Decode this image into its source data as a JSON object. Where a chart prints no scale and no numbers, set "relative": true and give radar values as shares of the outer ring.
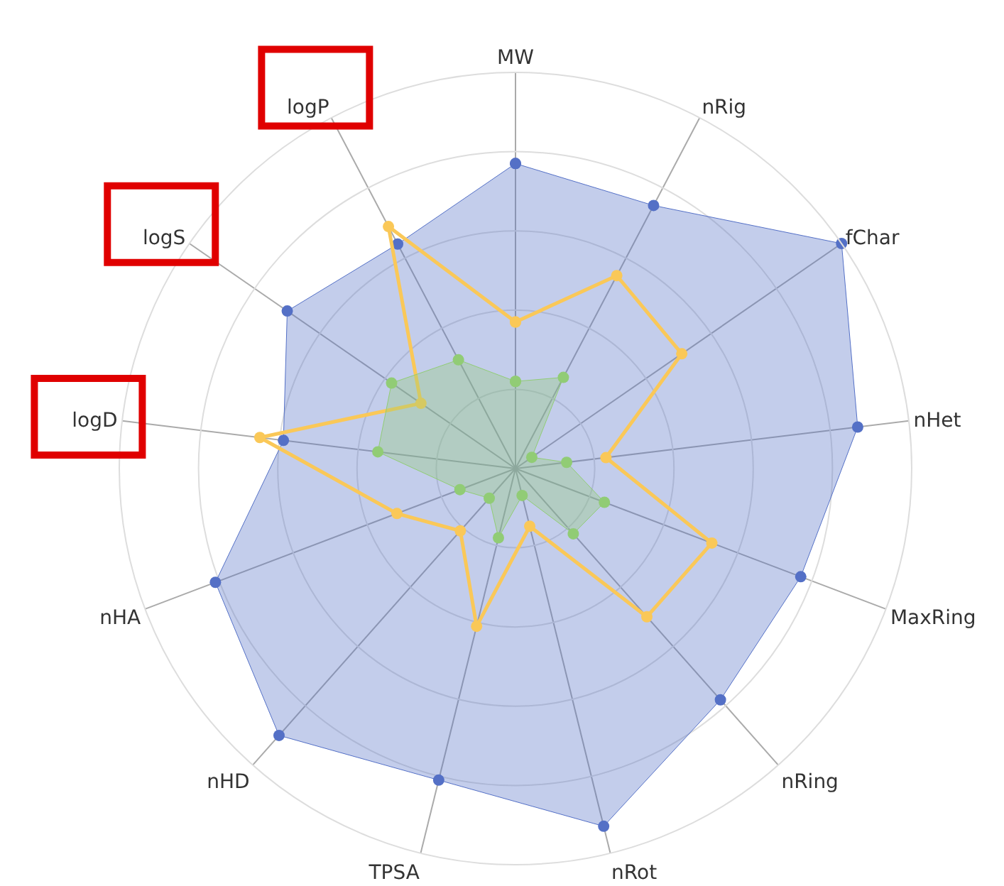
{
  "chart_data": {
    "type": "radar",
    "relative": true,
    "categories": [
      "MW",
      "nRig",
      "fChar",
      "nHet",
      "MaxRing",
      "nRing",
      "nRot",
      "TPSA",
      "nHD",
      "nHA",
      "logD",
      "logS",
      "logP"
    ],
    "series": [
      {
        "color": "#5470c6",
        "values": [
          0.77,
          0.75,
          1.0,
          0.87,
          0.77,
          0.78,
          0.93,
          0.81,
          0.9,
          0.81,
          0.59,
          0.7,
          0.64
        ]
      },
      {
        "color": "#fac858",
        "values": [
          0.37,
          0.55,
          0.51,
          0.23,
          0.53,
          0.5,
          0.15,
          0.41,
          0.21,
          0.32,
          0.65,
          0.29,
          0.69
        ]
      },
      {
        "color": "#91cc75",
        "values": [
          0.22,
          0.26,
          0.05,
          0.13,
          0.24,
          0.22,
          0.07,
          0.18,
          0.1,
          0.15,
          0.35,
          0.38,
          0.31
        ]
      }
    ],
    "marker": "circle",
    "grid": true
  }
}
